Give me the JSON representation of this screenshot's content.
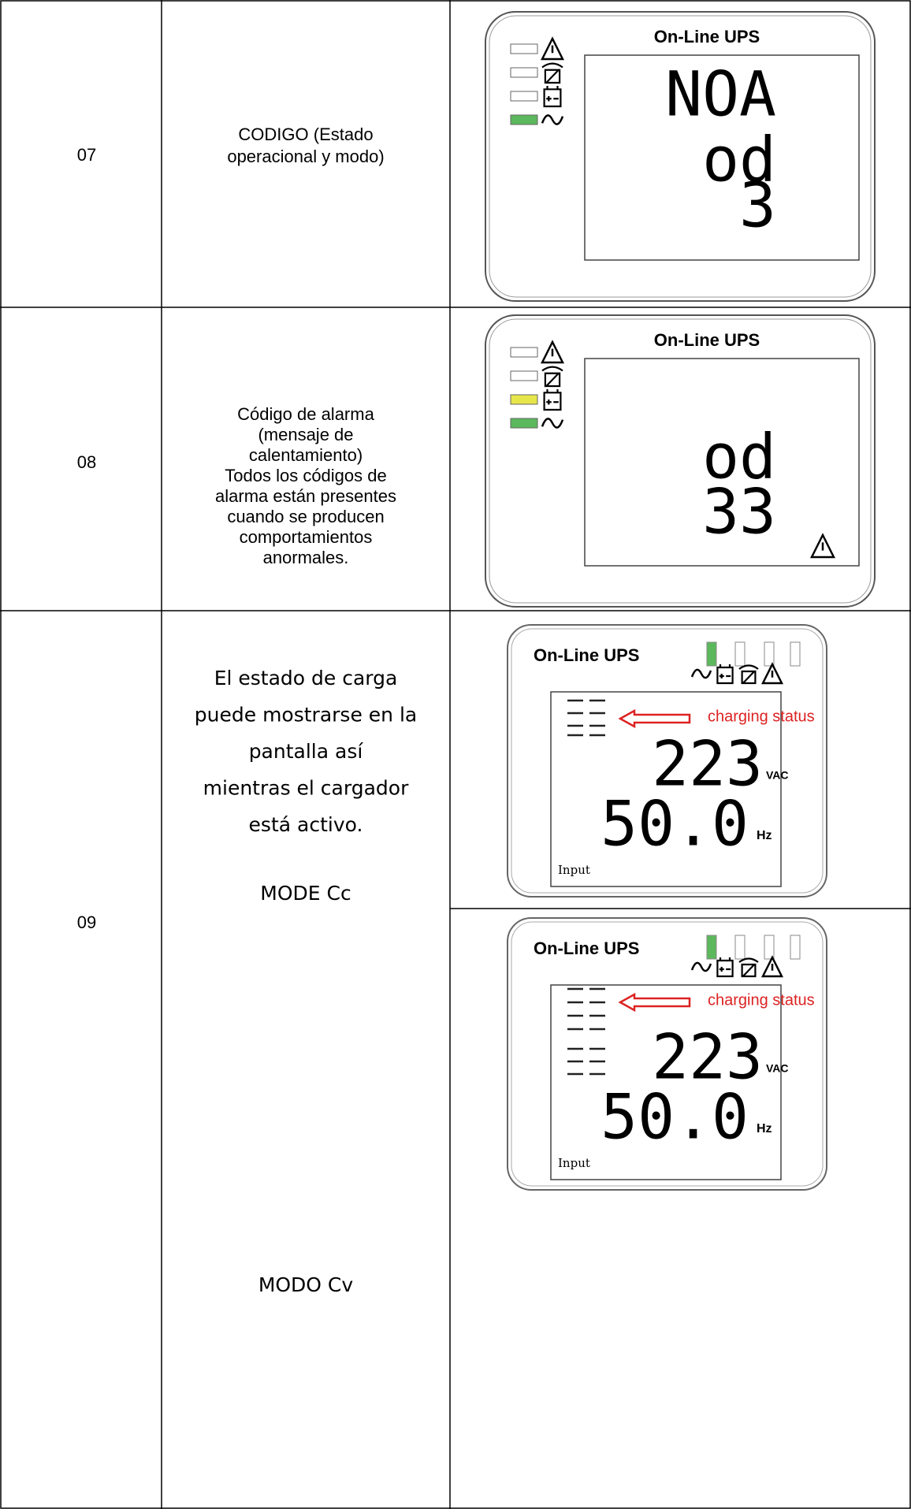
{
  "table": {
    "rows": [
      {
        "code": "07",
        "description": [
          "CODIGO (Estado",
          "operacional y modo)"
        ],
        "panels": [
          {
            "title": "On-Line UPS",
            "segments": [
              "NOA",
              "od",
              "3"
            ]
          }
        ]
      },
      {
        "code": "08",
        "description": [
          "Código de alarma",
          "(mensaje de",
          "calentamiento)",
          "Todos los códigos de",
          "alarma están presentes",
          "cuando se producen",
          "comportamientos",
          "anormales."
        ],
        "panels": [
          {
            "title": "On-Line UPS",
            "segments": [
              "od",
              "33"
            ]
          }
        ]
      },
      {
        "code": "09",
        "description": [
          "El estado de carga",
          "puede mostrarse en la",
          "pantalla así",
          "mientras el cargador",
          "está activo."
        ],
        "modes": [
          "MODE Cc",
          "MODO Cv"
        ],
        "panels": [
          {
            "title": "On-Line UPS",
            "annotation": "charging status",
            "segments": [
              "223",
              "50.0"
            ],
            "units": [
              "VAC",
              "Hz"
            ],
            "source": "Input"
          },
          {
            "title": "On-Line UPS",
            "annotation": "charging status",
            "segments": [
              "223",
              "50.0"
            ],
            "units": [
              "VAC",
              "Hz"
            ],
            "source": "Input"
          }
        ]
      }
    ]
  }
}
